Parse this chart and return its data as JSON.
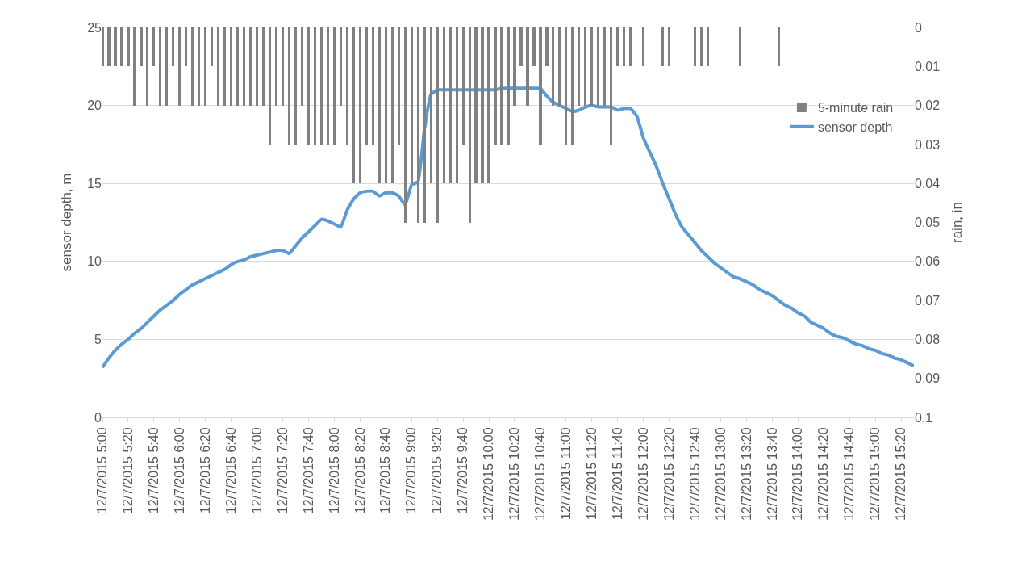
{
  "chart_data": {
    "type": "bar",
    "categories": [
      "12/7/2015 5:00",
      null,
      null,
      null,
      "12/7/2015 5:20",
      null,
      null,
      null,
      "12/7/2015 5:40",
      null,
      null,
      null,
      "12/7/2015 6:00",
      null,
      null,
      null,
      "12/7/2015 6:20",
      null,
      null,
      null,
      "12/7/2015 6:40",
      null,
      null,
      null,
      "12/7/2015 7:00",
      null,
      null,
      null,
      "12/7/2015 7:20",
      null,
      null,
      null,
      "12/7/2015 7:40",
      null,
      null,
      null,
      "12/7/2015 8:00",
      null,
      null,
      null,
      "12/7/2015 8:20",
      null,
      null,
      null,
      "12/7/2015 8:40",
      null,
      null,
      null,
      "12/7/2015 9:00",
      null,
      null,
      null,
      "12/7/2015 9:20",
      null,
      null,
      null,
      "12/7/2015 9:40",
      null,
      null,
      null,
      "12/7/2015 10:00",
      null,
      null,
      null,
      "12/7/2015 10:20",
      null,
      null,
      null,
      "12/7/2015 10:40",
      null,
      null,
      null,
      "12/7/2015 11:00",
      null,
      null,
      null,
      "12/7/2015 11:20",
      null,
      null,
      null,
      "12/7/2015 11:40",
      null,
      null,
      null,
      "12/7/2015 12:00",
      null,
      null,
      null,
      "12/7/2015 12:20",
      null,
      null,
      null,
      "12/7/2015 12:40",
      null,
      null,
      null,
      "12/7/2015 13:00",
      null,
      null,
      null,
      "12/7/2015 13:20",
      null,
      null,
      null,
      "12/7/2015 13:40",
      null,
      null,
      null,
      "12/7/2015 14:00",
      null,
      null,
      null,
      "12/7/2015 14:20",
      null,
      null,
      null,
      "12/7/2015 14:40",
      null,
      null,
      null,
      "12/7/2015 15:00",
      null,
      null,
      null,
      "12/7/2015 15:20",
      null,
      null
    ],
    "series": [
      {
        "name": "5-minute rain",
        "axis": "y2",
        "color": "#808080",
        "values": [
          0.01,
          0.01,
          0.01,
          0.01,
          0.01,
          0.02,
          0.01,
          0.02,
          0.01,
          0.02,
          0.02,
          0.01,
          0.02,
          0.01,
          0.02,
          0.02,
          0.02,
          0.01,
          0.02,
          0.02,
          0.02,
          0.02,
          0.02,
          0.02,
          0.02,
          0.02,
          0.03,
          0.02,
          0.02,
          0.03,
          0.03,
          0.02,
          0.03,
          0.03,
          0.03,
          0.03,
          0.03,
          0.02,
          0.03,
          0.04,
          0.04,
          0.03,
          0.03,
          0.04,
          0.04,
          0.04,
          0.03,
          0.05,
          0.04,
          0.05,
          0.05,
          0.04,
          0.05,
          0.04,
          0.04,
          0.04,
          0.03,
          0.05,
          0.04,
          0.04,
          0.04,
          0.03,
          0.03,
          0.03,
          0.02,
          0.01,
          0.02,
          0.01,
          0.03,
          0.01,
          0.02,
          0.02,
          0.03,
          0.03,
          0.02,
          0.02,
          0.02,
          0.02,
          0.02,
          0.03,
          0.01,
          0.01,
          0.01,
          0,
          0.01,
          0,
          0,
          0.01,
          0.01,
          0,
          0,
          0,
          0.01,
          0.01,
          0.01,
          0,
          0,
          0,
          0,
          0.01,
          0,
          0,
          0,
          0,
          0,
          0.01,
          0,
          0,
          0,
          0,
          0,
          0,
          0,
          0,
          0,
          0,
          0,
          0,
          0,
          0,
          0,
          0,
          0,
          0,
          0,
          0,
          0
        ]
      },
      {
        "name": "sensor depth",
        "type": "line",
        "color": "#5b9bd5",
        "values": [
          3.2,
          3.8,
          4.3,
          4.7,
          5.0,
          5.4,
          5.7,
          6.1,
          6.5,
          6.9,
          7.2,
          7.5,
          7.9,
          8.2,
          8.5,
          8.7,
          8.9,
          9.1,
          9.3,
          9.5,
          9.8,
          10.0,
          10.1,
          10.3,
          10.4,
          10.5,
          10.6,
          10.7,
          10.7,
          10.5,
          11.0,
          11.5,
          11.9,
          12.3,
          12.7,
          12.6,
          12.4,
          12.2,
          13.3,
          14.0,
          14.4,
          14.5,
          14.5,
          14.2,
          14.4,
          14.4,
          14.2,
          13.6,
          14.9,
          15.1,
          18.5,
          20.7,
          21.0,
          21.0,
          21.0,
          21.0,
          21.0,
          21.0,
          21.0,
          21.0,
          21.0,
          21.0,
          21.1,
          21.1,
          21.1,
          21.1,
          21.1,
          21.1,
          21.1,
          20.6,
          20.2,
          20.0,
          19.8,
          19.6,
          19.7,
          19.9,
          20.0,
          19.9,
          19.9,
          19.9,
          19.7,
          19.8,
          19.8,
          19.3,
          17.9,
          17.0,
          16.1,
          15.0,
          14.0,
          13.0,
          12.2,
          11.7,
          11.2,
          10.7,
          10.3,
          9.9,
          9.6,
          9.3,
          9.0,
          8.9,
          8.7,
          8.5,
          8.2,
          8.0,
          7.8,
          7.5,
          7.2,
          7.0,
          6.7,
          6.5,
          6.1,
          5.9,
          5.7,
          5.4,
          5.2,
          5.1,
          4.9,
          4.7,
          4.6,
          4.4,
          4.3,
          4.1,
          4.0,
          3.8,
          3.7,
          3.5,
          3.3
        ]
      }
    ],
    "ylabel": "sensor depth, m",
    "y2label": "rain, in",
    "ylim": [
      0,
      25
    ],
    "yticks": [
      0,
      5,
      10,
      15,
      20,
      25
    ],
    "y2lim": [
      0.1,
      0
    ],
    "y2ticks": [
      0,
      0.01,
      0.02,
      0.03,
      0.04,
      0.05,
      0.06,
      0.07,
      0.08,
      0.09,
      0.1
    ],
    "grid": "y",
    "legend": "top right",
    "marker": "none",
    "line_style": "solid"
  }
}
